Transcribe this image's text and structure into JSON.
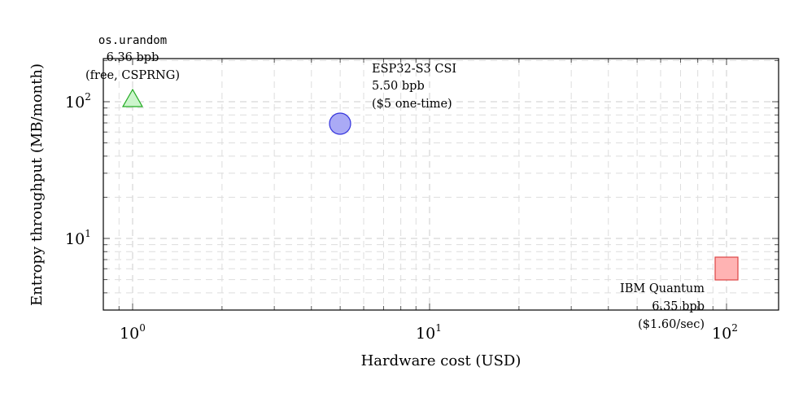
{
  "chart_data": {
    "type": "scatter",
    "title": "",
    "xlabel": "Hardware cost (USD)",
    "ylabel": "Entropy throughput (MB/month)",
    "xscale": "log",
    "yscale": "log",
    "xlim": [
      0.8,
      160
    ],
    "ylim": [
      3,
      210
    ],
    "grid": true,
    "x_ticks": [
      {
        "base": "10",
        "exp": "0",
        "value": 1
      },
      {
        "base": "10",
        "exp": "1",
        "value": 10
      },
      {
        "base": "10",
        "exp": "2",
        "value": 100
      }
    ],
    "y_ticks": [
      {
        "base": "10",
        "exp": "1",
        "value": 10
      },
      {
        "base": "10",
        "exp": "2",
        "value": 100
      }
    ],
    "series": [
      {
        "name": "os.urandom",
        "marker": "triangle",
        "color": "#22aa22",
        "fill": "#ccf5cc",
        "x": 1,
        "y": 105,
        "annotation": [
          "os.urandom",
          "6.36 bpb",
          "(free, CSPRNG)"
        ]
      },
      {
        "name": "ESP32-S3 CSI",
        "marker": "circle",
        "color": "#3333dd",
        "fill": "#aaaaf5",
        "x": 5,
        "y": 69,
        "annotation": [
          "ESP32-S3 CSI",
          "5.50 bpb",
          "($5 one-time)"
        ]
      },
      {
        "name": "IBM Quantum",
        "marker": "square",
        "color": "#dd4444",
        "fill": "#ffb3b3",
        "x": 100,
        "y": 6,
        "annotation": [
          "IBM Quantum",
          "6.35 bpb",
          "($1.60/sec)"
        ]
      }
    ]
  },
  "labels": {
    "xlabel": "Hardware cost (USD)",
    "ylabel": "Entropy throughput (MB/month)",
    "x_tick_0_base": "10",
    "x_tick_0_exp": "0",
    "x_tick_1_base": "10",
    "x_tick_1_exp": "1",
    "x_tick_2_base": "10",
    "x_tick_2_exp": "2",
    "y_tick_1_base": "10",
    "y_tick_1_exp": "1",
    "y_tick_2_base": "10",
    "y_tick_2_exp": "2",
    "urandom_line1": "os.urandom",
    "urandom_line2": "6.36 bpb",
    "urandom_line3": "(free, CSPRNG)",
    "esp_line1": "ESP32-S3 CSI",
    "esp_line2": "5.50 bpb",
    "esp_line3": "($5 one-time)",
    "ibm_line1": "IBM Quantum",
    "ibm_line2": "6.35 bpb",
    "ibm_line3": "($1.60/sec)"
  }
}
